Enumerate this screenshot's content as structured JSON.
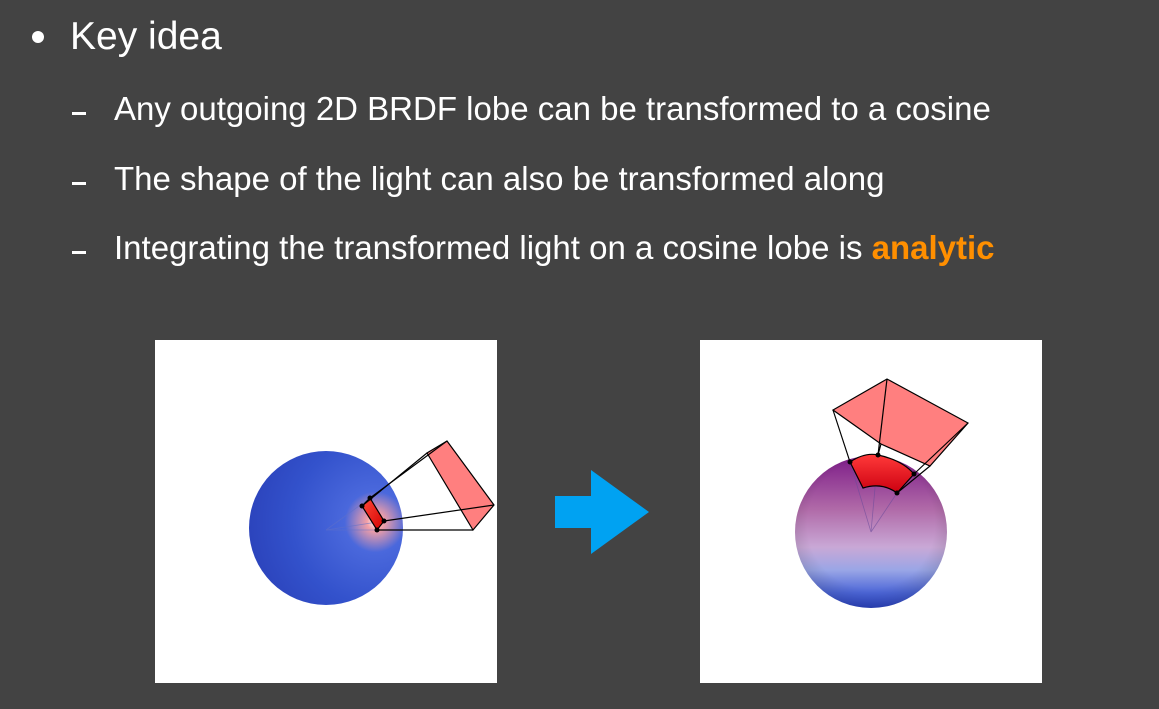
{
  "slide": {
    "heading": "Key idea",
    "points": [
      {
        "text": "Any outgoing 2D BRDF lobe can be transformed to a cosine"
      },
      {
        "text": "The shape of the light can also be transformed along"
      },
      {
        "text": "Integrating the transformed light on a cosine lobe is ",
        "highlight": "analytic"
      }
    ]
  },
  "colors": {
    "background": "#434343",
    "text": "#ffffff",
    "highlight": "#ff8f00",
    "arrow": "#00a2f2",
    "light_polygon": "#ff7f7f",
    "sphere_blue": "#2c44c4"
  },
  "icons": {
    "bullet": "bullet-dot-icon",
    "dash": "dash-icon",
    "arrow": "right-arrow-icon"
  }
}
